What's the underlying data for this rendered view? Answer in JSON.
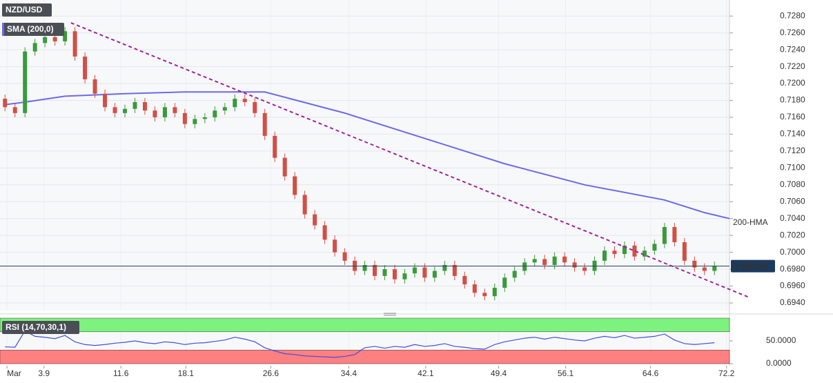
{
  "chart_data": {
    "type": "candlestick",
    "title": "NZD/USD",
    "x": [
      0,
      1,
      2,
      3,
      4,
      5,
      6,
      7,
      8,
      9,
      10,
      11,
      12,
      13,
      14,
      15,
      16,
      17,
      18,
      19,
      20,
      21,
      22,
      23,
      24,
      25,
      26,
      27,
      28,
      29,
      30,
      31,
      32,
      33,
      34,
      35,
      36,
      37,
      38,
      39,
      40,
      41,
      42,
      43,
      44,
      45,
      46,
      47,
      48,
      49,
      50,
      51,
      52,
      53,
      54,
      55,
      56,
      57,
      58,
      59,
      60,
      61,
      62,
      63,
      64,
      65,
      66,
      67,
      68,
      69,
      70,
      71
    ],
    "open": [
      0.7182,
      0.7172,
      0.7165,
      0.7238,
      0.7248,
      0.7255,
      0.725,
      0.7262,
      0.7232,
      0.7205,
      0.7188,
      0.7172,
      0.7165,
      0.717,
      0.7178,
      0.7168,
      0.716,
      0.7172,
      0.7165,
      0.7152,
      0.7158,
      0.716,
      0.7168,
      0.7172,
      0.7182,
      0.7178,
      0.7165,
      0.7138,
      0.7112,
      0.709,
      0.7068,
      0.7045,
      0.7032,
      0.7015,
      0.7,
      0.699,
      0.6978,
      0.6985,
      0.6972,
      0.698,
      0.6968,
      0.6975,
      0.6982,
      0.697,
      0.6978,
      0.6985,
      0.6972,
      0.6962,
      0.6952,
      0.6948,
      0.6958,
      0.697,
      0.6978,
      0.6988,
      0.6992,
      0.6985,
      0.6995,
      0.6988,
      0.6982,
      0.6978,
      0.699,
      0.7002,
      0.6998,
      0.7008,
      0.6995,
      0.7002,
      0.701,
      0.703,
      0.7012,
      0.699,
      0.6982,
      0.6978
    ],
    "high": [
      0.7187,
      0.7177,
      0.7243,
      0.7253,
      0.726,
      0.726,
      0.7267,
      0.7267,
      0.7237,
      0.721,
      0.7193,
      0.7177,
      0.7175,
      0.7183,
      0.7183,
      0.7173,
      0.7177,
      0.7177,
      0.717,
      0.7163,
      0.7165,
      0.7173,
      0.7177,
      0.7187,
      0.7187,
      0.7183,
      0.717,
      0.7143,
      0.7117,
      0.7095,
      0.7073,
      0.705,
      0.7037,
      0.702,
      0.7005,
      0.6995,
      0.699,
      0.699,
      0.6985,
      0.6985,
      0.698,
      0.6987,
      0.6987,
      0.6983,
      0.699,
      0.699,
      0.6977,
      0.6967,
      0.6957,
      0.6963,
      0.6975,
      0.6983,
      0.6993,
      0.6997,
      0.6997,
      0.7,
      0.7,
      0.6993,
      0.6987,
      0.6995,
      0.7007,
      0.7007,
      0.7013,
      0.7013,
      0.7007,
      0.7015,
      0.7035,
      0.7035,
      0.7017,
      0.6995,
      0.6987,
      0.6989
    ],
    "low": [
      0.7167,
      0.716,
      0.716,
      0.7233,
      0.7243,
      0.7245,
      0.7245,
      0.7227,
      0.72,
      0.7183,
      0.7167,
      0.716,
      0.716,
      0.7165,
      0.7163,
      0.7155,
      0.7155,
      0.716,
      0.7147,
      0.7147,
      0.7153,
      0.7155,
      0.7163,
      0.7167,
      0.7173,
      0.716,
      0.7133,
      0.7107,
      0.7085,
      0.7063,
      0.704,
      0.7027,
      0.701,
      0.6995,
      0.6985,
      0.6973,
      0.6973,
      0.6967,
      0.6967,
      0.6963,
      0.6963,
      0.697,
      0.6965,
      0.6965,
      0.6973,
      0.6967,
      0.6957,
      0.6947,
      0.6943,
      0.6943,
      0.6953,
      0.6965,
      0.6973,
      0.6983,
      0.698,
      0.698,
      0.6983,
      0.6977,
      0.6973,
      0.6973,
      0.6985,
      0.6993,
      0.6993,
      0.699,
      0.699,
      0.6997,
      0.7005,
      0.7007,
      0.6985,
      0.6977,
      0.6973,
      0.6973
    ],
    "close": [
      0.7172,
      0.7165,
      0.7238,
      0.7248,
      0.7255,
      0.725,
      0.7262,
      0.7232,
      0.7205,
      0.7188,
      0.7172,
      0.7165,
      0.717,
      0.7178,
      0.7168,
      0.716,
      0.7172,
      0.7165,
      0.7152,
      0.7158,
      0.716,
      0.7168,
      0.7172,
      0.7182,
      0.7178,
      0.7165,
      0.7138,
      0.7112,
      0.709,
      0.7068,
      0.7045,
      0.7032,
      0.7015,
      0.7,
      0.699,
      0.6978,
      0.6985,
      0.6972,
      0.698,
      0.6968,
      0.6975,
      0.6982,
      0.697,
      0.6978,
      0.6985,
      0.6972,
      0.6962,
      0.6952,
      0.6948,
      0.6958,
      0.697,
      0.6978,
      0.6988,
      0.6992,
      0.6985,
      0.6995,
      0.6988,
      0.6982,
      0.6978,
      0.699,
      0.7002,
      0.6998,
      0.7008,
      0.6995,
      0.7002,
      0.701,
      0.703,
      0.7012,
      0.699,
      0.6982,
      0.6978,
      0.6984
    ],
    "up_color": "#3a9a3a",
    "down_color": "#d24f45",
    "xlim": [
      -0.5,
      72.5
    ],
    "xticks": [
      {
        "value": 0.2,
        "label": "Mar"
      },
      3.9,
      11.6,
      18.1,
      26.6,
      34.4,
      42.1,
      49.4,
      56.1,
      64.6,
      72.2
    ],
    "ylim": [
      0.6931,
      0.7299
    ],
    "yticks": [
      {
        "value": 0.694,
        "label": "0.6940"
      },
      {
        "value": 0.696,
        "label": "0.6960"
      },
      {
        "value": 0.698,
        "label": "0.6980"
      },
      {
        "value": 0.7,
        "label": "0.7000"
      },
      {
        "value": 0.702,
        "label": "0.7020"
      },
      {
        "value": 0.704,
        "label": "0.7040"
      },
      {
        "value": 0.706,
        "label": "0.7060"
      },
      {
        "value": 0.708,
        "label": "0.7080"
      },
      {
        "value": 0.71,
        "label": "0.7100"
      },
      {
        "value": 0.712,
        "label": "0.7120"
      },
      {
        "value": 0.714,
        "label": "0.7140"
      },
      {
        "value": 0.716,
        "label": "0.7160"
      },
      {
        "value": 0.718,
        "label": "0.7180"
      },
      {
        "value": 0.72,
        "label": "0.7200"
      },
      {
        "value": 0.722,
        "label": "0.7220"
      },
      {
        "value": 0.724,
        "label": "0.7240"
      },
      {
        "value": 0.726,
        "label": "0.7260"
      },
      {
        "value": 0.728,
        "label": "0.7280"
      }
    ],
    "grid": true,
    "sma": {
      "name": "SMA (200,0)",
      "label": "200-HMA",
      "color": "#6b68ee",
      "x": [
        0,
        2,
        6,
        12,
        18,
        26,
        34,
        42,
        50,
        58,
        66,
        70,
        72.5
      ],
      "values": [
        0.7175,
        0.7178,
        0.7185,
        0.7188,
        0.719,
        0.719,
        0.7165,
        0.7135,
        0.7105,
        0.708,
        0.7062,
        0.7047,
        0.704
      ]
    },
    "trendline": {
      "color": "#a020a0",
      "x": [
        6.6,
        74.4
      ],
      "values": [
        0.7272,
        0.6947
      ]
    },
    "last_price": {
      "value": 0.698365,
      "color": "#1c3a5e"
    },
    "rsi": {
      "name": "RSI (14,70,30,1)",
      "color": "#3f4fe0",
      "ylim": [
        0,
        100
      ],
      "yticks": [
        {
          "value": 50,
          "label": "50.0000"
        },
        {
          "value": 0,
          "label": "0.0000"
        }
      ],
      "upper_band": [
        70,
        100
      ],
      "lower_band": [
        0,
        30
      ],
      "upper_color": "#7ef27e",
      "lower_color": "#ff8080",
      "values": [
        37,
        36,
        72,
        60,
        58,
        55,
        62,
        48,
        42,
        40,
        42,
        45,
        47,
        50,
        46,
        44,
        48,
        46,
        42,
        45,
        46,
        49,
        52,
        58,
        54,
        48,
        35,
        28,
        22,
        20,
        17,
        16,
        15,
        14,
        16,
        20,
        35,
        38,
        34,
        38,
        36,
        42,
        38,
        40,
        44,
        38,
        36,
        33,
        32,
        42,
        48,
        52,
        56,
        58,
        54,
        58,
        55,
        52,
        50,
        56,
        60,
        57,
        62,
        56,
        58,
        60,
        65,
        52,
        44,
        42,
        44,
        46
      ]
    }
  }
}
